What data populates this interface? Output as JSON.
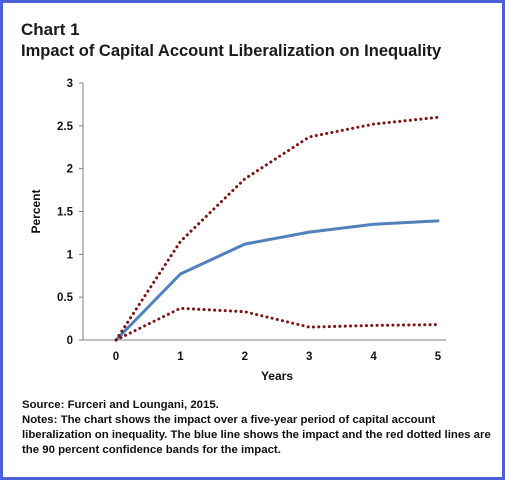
{
  "header": {
    "chart_number": "Chart 1",
    "title": "Impact of Capital Account Liberalization on Inequality"
  },
  "footer": {
    "source": "Source: Furceri and Loungani, 2015.",
    "notes": "Notes: The chart shows the impact over a five-year period of capital account liberalization on inequality. The blue line shows the impact and the red dotted lines are the 90 percent confidence bands for the impact."
  },
  "colors": {
    "frame": "#4a62d8",
    "impact_line": "#4f81bd",
    "confidence_band": "#7b1414"
  },
  "chart_data": {
    "type": "line",
    "title": "Impact of Capital Account Liberalization on Inequality",
    "xlabel": "Years",
    "ylabel": "Percent",
    "x": [
      0,
      1,
      2,
      3,
      4,
      5
    ],
    "xlim": [
      0,
      5
    ],
    "ylim": [
      0,
      3
    ],
    "yticks": [
      "0",
      "0.5",
      "1",
      "1.5",
      "2",
      "2.5",
      "3"
    ],
    "grid": false,
    "legend": "none",
    "series": [
      {
        "values": [
          0,
          0.77,
          1.12,
          1.26,
          1.35,
          1.39
        ],
        "style": "solid",
        "color": "#4f81bd"
      },
      {
        "values": [
          0,
          1.15,
          1.88,
          2.37,
          2.52,
          2.6
        ],
        "style": "dotted",
        "color": "#7b1414"
      },
      {
        "values": [
          0,
          0.37,
          0.33,
          0.15,
          0.17,
          0.18
        ],
        "style": "dotted",
        "color": "#7b1414"
      }
    ]
  }
}
